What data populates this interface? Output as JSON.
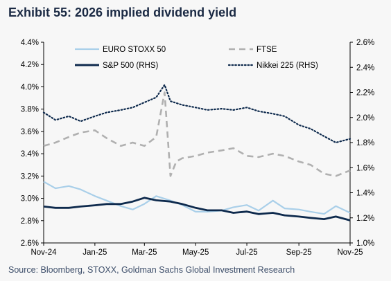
{
  "title": "Exhibit 55: 2026 implied dividend yield",
  "source": "Source: Bloomberg, STOXX, Goldman Sachs Global Investment Research",
  "chart_data": {
    "type": "line",
    "x_axis": {
      "start": "2024-11-01",
      "end": "2025-11-01",
      "tick_labels": [
        "Nov-24",
        "Jan-25",
        "Mar-25",
        "May-25",
        "Jul-25",
        "Sep-25",
        "Nov-25"
      ],
      "tick_dates": [
        "2024-11-01",
        "2025-01-01",
        "2025-03-01",
        "2025-05-01",
        "2025-07-01",
        "2025-09-01",
        "2025-11-01"
      ]
    },
    "y_left": {
      "ylim": [
        2.6,
        4.4
      ],
      "ticks": [
        2.6,
        2.8,
        3.0,
        3.2,
        3.4,
        3.6,
        3.8,
        4.0,
        4.2,
        4.4
      ],
      "tick_labels": [
        "2.6%",
        "2.8%",
        "3.0%",
        "3.2%",
        "3.4%",
        "3.6%",
        "3.8%",
        "4.0%",
        "4.2%",
        "4.4%"
      ]
    },
    "y_right": {
      "ylim": [
        1.0,
        2.6
      ],
      "ticks": [
        1.0,
        1.2,
        1.4,
        1.6,
        1.8,
        2.0,
        2.2,
        2.4,
        2.6
      ],
      "tick_labels": [
        "1.0%",
        "1.2%",
        "1.4%",
        "1.6%",
        "1.8%",
        "2.0%",
        "2.2%",
        "2.4%",
        "2.6%"
      ]
    },
    "legend_placement": "top",
    "grid": false,
    "series": [
      {
        "name": "EURO STOXX 50",
        "axis": "left",
        "color": "#a9cfe9",
        "style": "solid",
        "x": [
          "2024-11-01",
          "2024-11-15",
          "2024-12-01",
          "2024-12-15",
          "2025-01-01",
          "2025-01-15",
          "2025-02-01",
          "2025-02-15",
          "2025-03-01",
          "2025-03-15",
          "2025-04-01",
          "2025-04-15",
          "2025-05-01",
          "2025-05-15",
          "2025-06-01",
          "2025-06-15",
          "2025-07-01",
          "2025-07-15",
          "2025-08-01",
          "2025-08-15",
          "2025-09-01",
          "2025-09-15",
          "2025-10-01",
          "2025-10-15",
          "2025-11-01"
        ],
        "values": [
          3.15,
          3.09,
          3.11,
          3.08,
          3.02,
          2.98,
          2.93,
          2.9,
          2.95,
          3.02,
          2.98,
          2.94,
          2.88,
          2.88,
          2.89,
          2.92,
          2.94,
          2.89,
          2.98,
          2.91,
          2.9,
          2.88,
          2.86,
          2.93,
          2.87
        ]
      },
      {
        "name": "FTSE",
        "axis": "left",
        "color": "#b0b0b0",
        "style": "dashed",
        "x": [
          "2024-11-01",
          "2024-11-15",
          "2024-12-01",
          "2024-12-15",
          "2025-01-01",
          "2025-01-15",
          "2025-02-01",
          "2025-02-15",
          "2025-03-01",
          "2025-03-15",
          "2025-03-25",
          "2025-04-01",
          "2025-04-08",
          "2025-04-15",
          "2025-05-01",
          "2025-05-15",
          "2025-06-01",
          "2025-06-15",
          "2025-07-01",
          "2025-07-15",
          "2025-08-01",
          "2025-08-15",
          "2025-09-01",
          "2025-09-15",
          "2025-10-01",
          "2025-10-15",
          "2025-11-01"
        ],
        "values": [
          3.47,
          3.5,
          3.55,
          3.59,
          3.61,
          3.54,
          3.47,
          3.5,
          3.47,
          3.55,
          3.95,
          3.2,
          3.33,
          3.36,
          3.38,
          3.41,
          3.43,
          3.45,
          3.38,
          3.37,
          3.4,
          3.38,
          3.33,
          3.3,
          3.22,
          3.2,
          3.25
        ]
      },
      {
        "name": "S&P 500 (RHS)",
        "axis": "right",
        "color": "#0e2a4d",
        "style": "solid",
        "x": [
          "2024-11-01",
          "2024-11-15",
          "2024-12-01",
          "2024-12-15",
          "2025-01-01",
          "2025-01-15",
          "2025-02-01",
          "2025-02-15",
          "2025-03-01",
          "2025-03-15",
          "2025-04-01",
          "2025-04-15",
          "2025-05-01",
          "2025-05-15",
          "2025-06-01",
          "2025-06-15",
          "2025-07-01",
          "2025-07-15",
          "2025-08-01",
          "2025-08-15",
          "2025-09-01",
          "2025-09-15",
          "2025-10-01",
          "2025-10-15",
          "2025-11-01"
        ],
        "values": [
          1.29,
          1.28,
          1.28,
          1.29,
          1.3,
          1.31,
          1.31,
          1.33,
          1.36,
          1.34,
          1.33,
          1.31,
          1.28,
          1.26,
          1.26,
          1.24,
          1.25,
          1.23,
          1.24,
          1.22,
          1.21,
          1.2,
          1.19,
          1.21,
          1.18
        ]
      },
      {
        "name": "Nikkei 225 (RHS)",
        "axis": "right",
        "color": "#0e2a4d",
        "style": "dotted",
        "x": [
          "2024-11-01",
          "2024-11-15",
          "2024-12-01",
          "2024-12-15",
          "2025-01-01",
          "2025-01-15",
          "2025-02-01",
          "2025-02-15",
          "2025-03-01",
          "2025-03-15",
          "2025-03-25",
          "2025-04-01",
          "2025-04-15",
          "2025-05-01",
          "2025-05-15",
          "2025-06-01",
          "2025-06-15",
          "2025-07-01",
          "2025-07-15",
          "2025-08-01",
          "2025-08-15",
          "2025-09-01",
          "2025-09-15",
          "2025-10-01",
          "2025-10-15",
          "2025-11-01"
        ],
        "values": [
          2.04,
          1.98,
          2.01,
          1.97,
          2.01,
          2.04,
          2.06,
          2.08,
          2.12,
          2.16,
          2.26,
          2.13,
          2.1,
          2.08,
          2.06,
          2.07,
          2.06,
          2.08,
          2.05,
          2.03,
          2.01,
          1.94,
          1.91,
          1.85,
          1.8,
          1.83
        ]
      }
    ]
  }
}
